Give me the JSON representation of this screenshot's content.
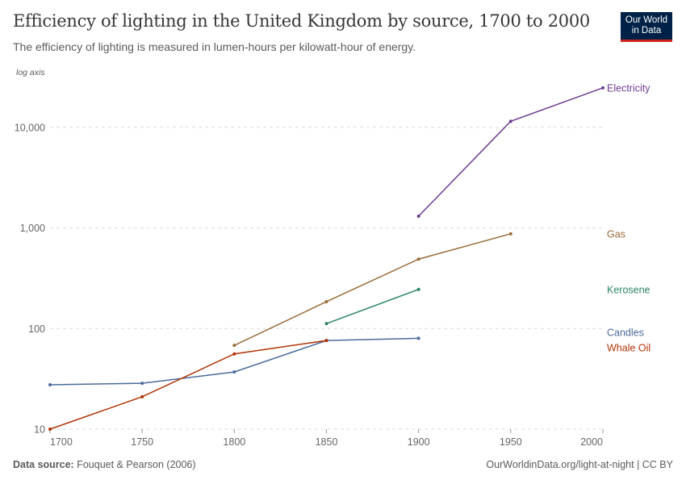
{
  "header": {
    "title": "Efficiency of lighting in the United Kingdom by source, 1700 to 2000",
    "subtitle": "The efficiency of lighting is measured in lumen-hours per kilowatt-hour of energy.",
    "logo": "Our World in Data"
  },
  "footer": {
    "source_label": "Data source:",
    "source": "Fouquet & Pearson (2006)",
    "credit": "OurWorldinData.org/light-at-night | CC BY"
  },
  "chart_data": {
    "type": "line",
    "title": "Efficiency of lighting in the United Kingdom by source, 1700 to 2000",
    "yscale": "log",
    "yscale_note": "log axis",
    "ylim": [
      10,
      30000
    ],
    "xlim": [
      1700,
      2000
    ],
    "yticks": [
      10,
      100,
      1000,
      10000
    ],
    "ytick_labels": [
      "10",
      "100",
      "1,000",
      "10,000"
    ],
    "xticks": [
      1700,
      1750,
      1800,
      1850,
      1900,
      1950,
      2000
    ],
    "grid": "horizontal dashed",
    "legend": "right (line-end labels)",
    "series": [
      {
        "name": "Electricity",
        "color": "#6d3e91",
        "x": [
          1900,
          1950,
          2000
        ],
        "y": [
          1310,
          11500,
          24700
        ]
      },
      {
        "name": "Gas",
        "color": "#996d39",
        "x": [
          1800,
          1850,
          1900,
          1950
        ],
        "y": [
          68,
          185,
          490,
          875
        ]
      },
      {
        "name": "Kerosene",
        "color": "#2c8465",
        "x": [
          1850,
          1900
        ],
        "y": [
          112,
          245
        ]
      },
      {
        "name": "Candles",
        "color": "#4c6a9c",
        "x": [
          1700,
          1750,
          1800,
          1850,
          1900
        ],
        "y": [
          27.6,
          28.6,
          37,
          76,
          80
        ]
      },
      {
        "name": "Whale Oil",
        "color": "#b13507",
        "x": [
          1700,
          1750,
          1800,
          1850
        ],
        "y": [
          10,
          21,
          56,
          76
        ]
      }
    ],
    "label_order": [
      "Electricity",
      "Gas",
      "Kerosene",
      "Candles",
      "Whale Oil"
    ]
  }
}
